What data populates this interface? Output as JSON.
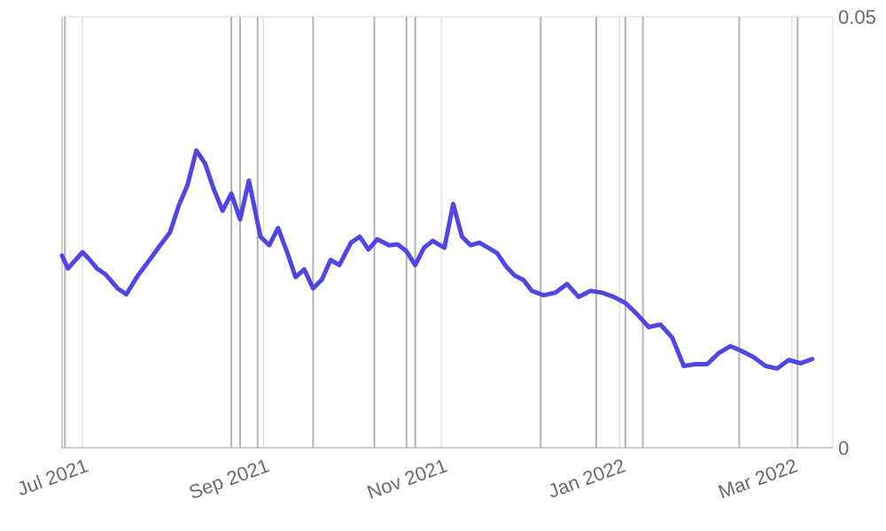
{
  "chart_data": {
    "type": "line",
    "x_tick_labels": [
      "Jul 2021",
      "Sep 2021",
      "Nov 2021",
      "Jan 2022",
      "Mar 2022"
    ],
    "x_tick_dates": [
      "2021-07-01",
      "2021-09-01",
      "2021-11-01",
      "2022-01-01",
      "2022-03-01"
    ],
    "x_range": [
      "2021-06-24",
      "2022-03-09"
    ],
    "ylim": [
      0,
      0.05
    ],
    "y_tick_labels": [
      "0",
      "0.05"
    ],
    "y_tick_values": [
      0,
      0.05
    ],
    "grid": true,
    "event_markers": [
      "2021-06-25",
      "2021-08-21",
      "2021-08-24",
      "2021-08-30",
      "2021-09-18",
      "2021-10-09",
      "2021-10-20",
      "2021-10-23",
      "2021-12-05",
      "2021-12-24",
      "2022-01-03",
      "2022-01-09",
      "2022-02-11",
      "2022-03-03"
    ],
    "series": [
      {
        "color": "#4F46E5",
        "x": [
          "2021-06-24",
          "2021-06-26",
          "2021-07-01",
          "2021-07-03",
          "2021-07-06",
          "2021-07-09",
          "2021-07-13",
          "2021-07-16",
          "2021-07-20",
          "2021-07-24",
          "2021-07-27",
          "2021-07-31",
          "2021-08-03",
          "2021-08-06",
          "2021-08-09",
          "2021-08-12",
          "2021-08-15",
          "2021-08-18",
          "2021-08-21",
          "2021-08-24",
          "2021-08-27",
          "2021-08-31",
          "2021-09-03",
          "2021-09-06",
          "2021-09-09",
          "2021-09-12",
          "2021-09-15",
          "2021-09-18",
          "2021-09-21",
          "2021-09-24",
          "2021-09-27",
          "2021-10-01",
          "2021-10-04",
          "2021-10-07",
          "2021-10-10",
          "2021-10-14",
          "2021-10-17",
          "2021-10-20",
          "2021-10-23",
          "2021-10-26",
          "2021-10-29",
          "2021-11-02",
          "2021-11-05",
          "2021-11-08",
          "2021-11-11",
          "2021-11-14",
          "2021-11-17",
          "2021-11-20",
          "2021-11-23",
          "2021-11-26",
          "2021-11-29",
          "2021-12-02",
          "2021-12-06",
          "2021-12-10",
          "2021-12-14",
          "2021-12-18",
          "2021-12-22",
          "2021-12-26",
          "2021-12-30",
          "2022-01-03",
          "2022-01-07",
          "2022-01-11",
          "2022-01-15",
          "2022-01-19",
          "2022-01-23",
          "2022-01-27",
          "2022-01-31",
          "2022-02-04",
          "2022-02-08",
          "2022-02-12",
          "2022-02-16",
          "2022-02-20",
          "2022-02-24",
          "2022-02-28",
          "2022-03-04",
          "2022-03-08"
        ],
        "y": [
          0.0223,
          0.0208,
          0.0227,
          0.022,
          0.0208,
          0.0201,
          0.0185,
          0.0178,
          0.02,
          0.0218,
          0.0232,
          0.025,
          0.0281,
          0.0305,
          0.0345,
          0.033,
          0.03,
          0.0275,
          0.0295,
          0.0265,
          0.031,
          0.0245,
          0.0235,
          0.0255,
          0.0228,
          0.0198,
          0.0207,
          0.0185,
          0.0195,
          0.0218,
          0.0212,
          0.0238,
          0.0245,
          0.023,
          0.0242,
          0.0235,
          0.0236,
          0.0228,
          0.0212,
          0.0232,
          0.024,
          0.0232,
          0.0283,
          0.0245,
          0.0235,
          0.0238,
          0.0232,
          0.0226,
          0.0211,
          0.02,
          0.0195,
          0.0182,
          0.0177,
          0.018,
          0.019,
          0.0175,
          0.0182,
          0.018,
          0.0175,
          0.0168,
          0.0155,
          0.014,
          0.0143,
          0.0128,
          0.0095,
          0.0097,
          0.0097,
          0.011,
          0.0118,
          0.0112,
          0.0105,
          0.0095,
          0.0092,
          0.0102,
          0.0098,
          0.0103
        ]
      }
    ]
  }
}
